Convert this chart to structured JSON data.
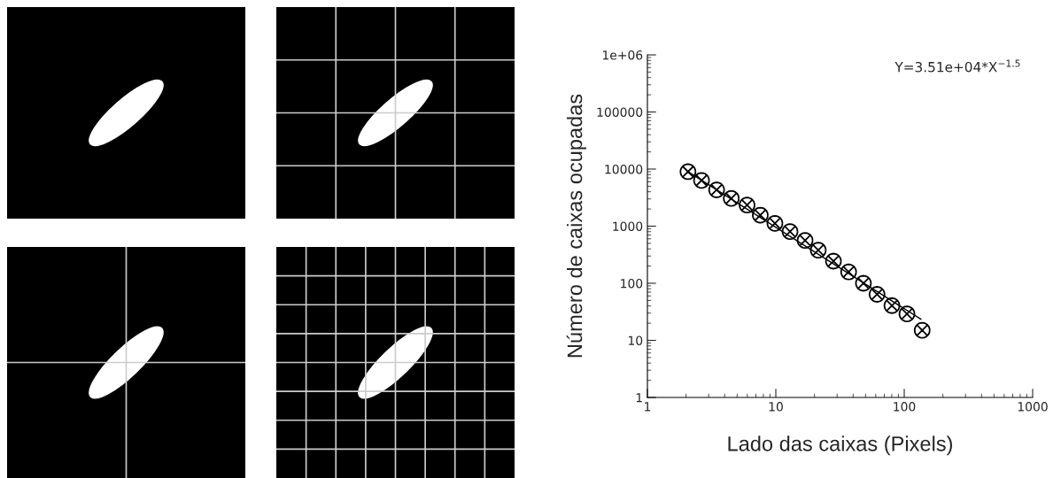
{
  "chart_data": {
    "type": "scatter",
    "xlabel": "Lado das caixas (Pixels)",
    "ylabel": "Número de caixas ocupadas",
    "log": "xy",
    "xlim": [
      1,
      1000
    ],
    "ylim": [
      1,
      1000000
    ],
    "xticks": [
      1,
      10,
      100,
      1000
    ],
    "yticks": [
      1,
      10,
      100,
      1000,
      10000,
      100000,
      {
        "value": 1000000,
        "label": "1e+06"
      }
    ],
    "grid": false,
    "legend": false,
    "annotations": [
      "Y=3.51e+04*X$^{−1.5}$"
    ],
    "series": [
      {
        "type": "line",
        "marker": "none",
        "color": "#000000",
        "x": [
          2.07,
          135
        ],
        "values": [
          9000,
          23.4
        ]
      },
      {
        "marker": "cross",
        "color": "#000000",
        "x": [
          2.07,
          2.64,
          3.46,
          4.5,
          5.97,
          7.57,
          9.84,
          12.9,
          16.9,
          21.4,
          28.1,
          36.9,
          48.1,
          61.4,
          80.2,
          105,
          138
        ],
        "values": [
          9000,
          6330,
          4320,
          3060,
          2340,
          1560,
          1120,
          805,
          563,
          380,
          244,
          158,
          100,
          64,
          40.6,
          29.1,
          15.0
        ]
      }
    ]
  }
}
